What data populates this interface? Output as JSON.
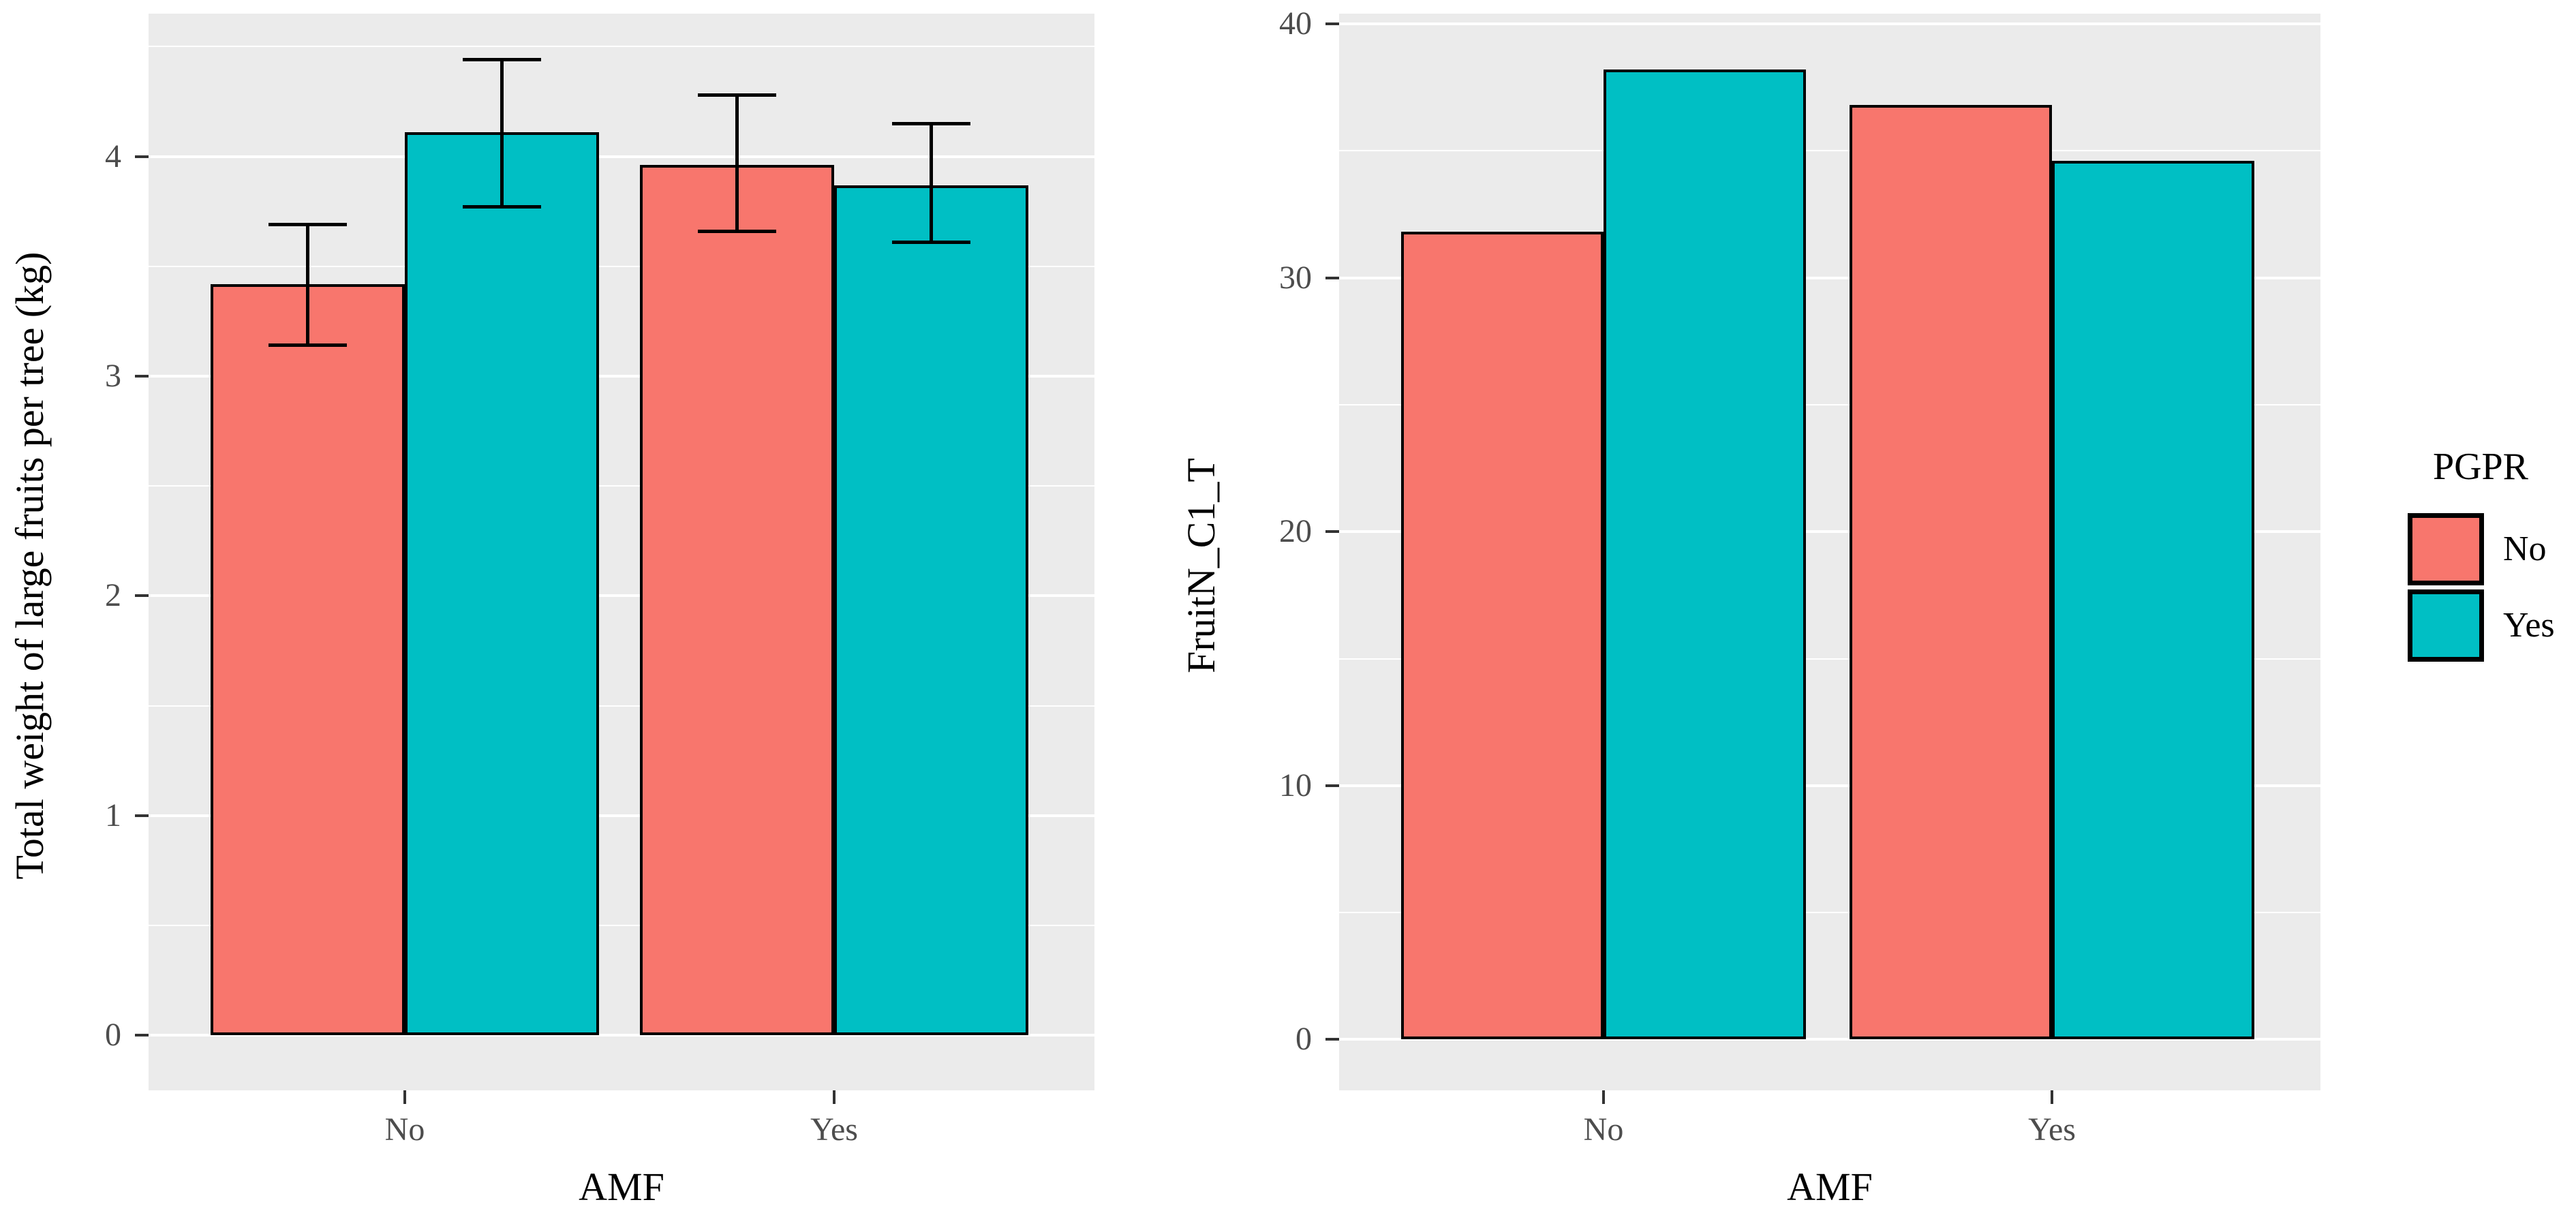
{
  "figure": {
    "background": "#ffffff",
    "panel_background": "#EBEBEB",
    "gridline_color": "#FFFFFF",
    "tick_text_color": "#4D4D4D"
  },
  "legend": {
    "title": "PGPR",
    "position": "right-center",
    "items": [
      {
        "label": "No",
        "color": "#F8766D"
      },
      {
        "label": "Yes",
        "color": "#00BFC4"
      }
    ]
  },
  "chart_data": [
    {
      "type": "bar",
      "title": "",
      "xlabel": "AMF",
      "ylabel": "Total weight of large fruits per tree (kg)",
      "categories": [
        "No",
        "Yes"
      ],
      "series": [
        {
          "name": "No",
          "color": "#F8766D",
          "values": [
            3.42,
            3.96
          ],
          "errors": [
            [
              3.14,
              3.69
            ],
            [
              3.66,
              4.28
            ]
          ]
        },
        {
          "name": "Yes",
          "color": "#00BFC4",
          "values": [
            4.11,
            3.87
          ],
          "errors": [
            [
              3.77,
              4.44
            ],
            [
              3.61,
              4.15
            ]
          ]
        }
      ],
      "error_bars": true,
      "y_ticks": [
        0,
        1,
        2,
        3,
        4
      ],
      "y_minor": [
        0.5,
        1.5,
        2.5,
        3.5,
        4.5
      ],
      "ylim": [
        -0.25,
        4.65
      ],
      "grid": true,
      "legend_position": "none"
    },
    {
      "type": "bar",
      "title": "",
      "xlabel": "AMF",
      "ylabel": "FruitN_C1_T",
      "categories": [
        "No",
        "Yes"
      ],
      "series": [
        {
          "name": "No",
          "color": "#F8766D",
          "values": [
            31.8,
            36.8
          ]
        },
        {
          "name": "Yes",
          "color": "#00BFC4",
          "values": [
            38.2,
            34.6
          ]
        }
      ],
      "error_bars": false,
      "y_ticks": [
        0,
        10,
        20,
        30,
        40
      ],
      "y_minor": [
        5,
        15,
        25,
        35
      ],
      "ylim": [
        -2,
        40.4
      ],
      "grid": true,
      "legend_position": "right"
    }
  ]
}
